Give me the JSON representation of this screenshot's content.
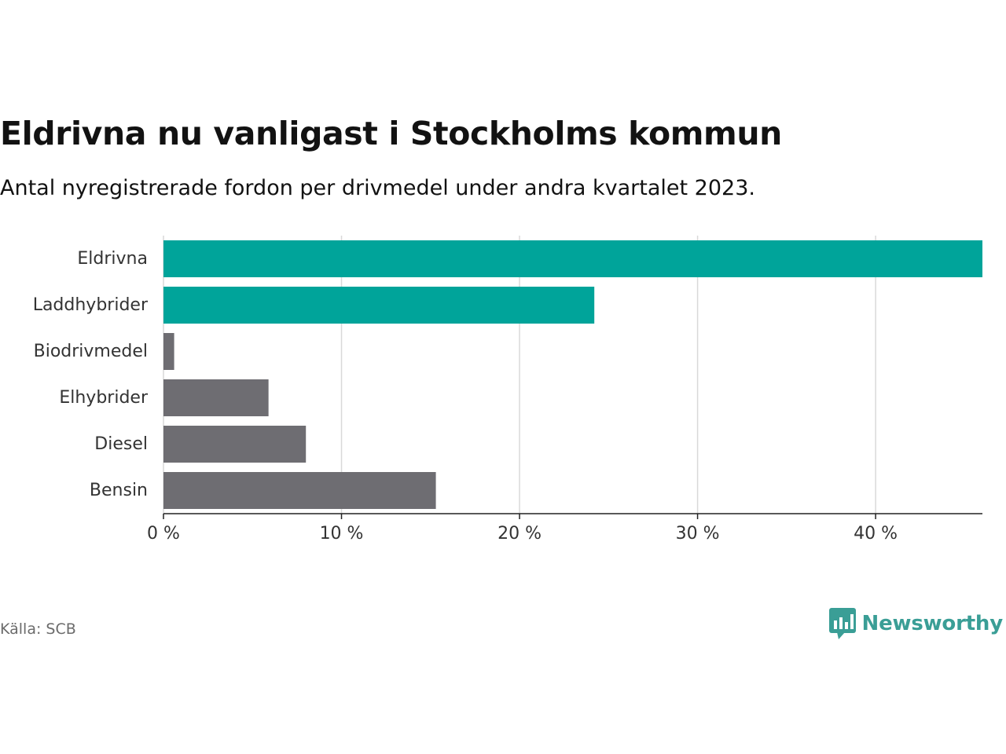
{
  "header": {
    "title": "Eldrivna nu vanligast i Stockholms kommun",
    "subtitle": "Antal nyregistrerade fordon per drivmedel under andra kvartalet 2023."
  },
  "footer": {
    "source": "Källa: SCB",
    "brand": "Newsworthy",
    "brand_icon": "newsworthy-logo-icon"
  },
  "colors": {
    "highlight": "#00a49a",
    "default": "#6e6d72",
    "grid": "#d9d9d9",
    "axis": "#222222",
    "brand": "#3a9e96"
  },
  "chart_data": {
    "type": "bar",
    "orientation": "horizontal",
    "categories": [
      "Eldrivna",
      "Laddhybrider",
      "Biodrivmedel",
      "Elhybrider",
      "Diesel",
      "Bensin"
    ],
    "values": [
      46.0,
      24.2,
      0.6,
      5.9,
      8.0,
      15.3
    ],
    "highlighted": [
      true,
      true,
      false,
      false,
      false,
      false
    ],
    "xlim": [
      0,
      46
    ],
    "xticks": [
      0,
      10,
      20,
      30,
      40
    ],
    "xtick_labels": [
      "0 %",
      "10 %",
      "20 %",
      "30 %",
      "40 %"
    ],
    "title": "Eldrivna nu vanligast i Stockholms kommun",
    "xlabel": "",
    "ylabel": "",
    "grid": true
  }
}
